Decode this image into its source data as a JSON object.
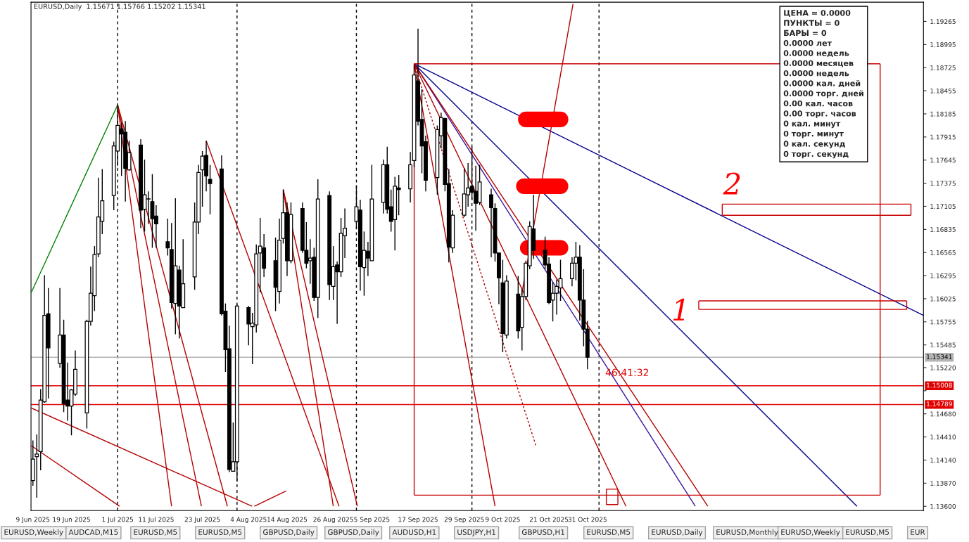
{
  "chart_data": {
    "type": "candlestick",
    "title": "EURUSD,Daily  1.15671 1.15766 1.15202 1.15341",
    "x": [
      "2025-06-09",
      "2025-06-10",
      "2025-06-11",
      "2025-06-12",
      "2025-06-13",
      "2025-06-16",
      "2025-06-17",
      "2025-06-18",
      "2025-06-19",
      "2025-06-20",
      "2025-06-23",
      "2025-06-24",
      "2025-06-25",
      "2025-06-26",
      "2025-06-27",
      "2025-06-30",
      "2025-07-01",
      "2025-07-02",
      "2025-07-03",
      "2025-07-04",
      "2025-07-07",
      "2025-07-08",
      "2025-07-09",
      "2025-07-10",
      "2025-07-11",
      "2025-07-14",
      "2025-07-15",
      "2025-07-16",
      "2025-07-17",
      "2025-07-18",
      "2025-07-21",
      "2025-07-22",
      "2025-07-23",
      "2025-07-24",
      "2025-07-25",
      "2025-07-28",
      "2025-07-29",
      "2025-07-30",
      "2025-07-31",
      "2025-08-01",
      "2025-08-04",
      "2025-08-05",
      "2025-08-06",
      "2025-08-07",
      "2025-08-08",
      "2025-08-11",
      "2025-08-12",
      "2025-08-13",
      "2025-08-14",
      "2025-08-15",
      "2025-08-18",
      "2025-08-19",
      "2025-08-20",
      "2025-08-21",
      "2025-08-22",
      "2025-08-25",
      "2025-08-26",
      "2025-08-27",
      "2025-08-28",
      "2025-08-29",
      "2025-09-01",
      "2025-09-02",
      "2025-09-03",
      "2025-09-04",
      "2025-09-05",
      "2025-09-08",
      "2025-09-09",
      "2025-09-10",
      "2025-09-11",
      "2025-09-12",
      "2025-09-15",
      "2025-09-16",
      "2025-09-17",
      "2025-09-18",
      "2025-09-19",
      "2025-09-22",
      "2025-09-23",
      "2025-09-24",
      "2025-09-25",
      "2025-09-26",
      "2025-09-29",
      "2025-09-30",
      "2025-10-01",
      "2025-10-02",
      "2025-10-03",
      "2025-10-06",
      "2025-10-07",
      "2025-10-08",
      "2025-10-09",
      "2025-10-10",
      "2025-10-13",
      "2025-10-14",
      "2025-10-15",
      "2025-10-16",
      "2025-10-17",
      "2025-10-20",
      "2025-10-21",
      "2025-10-22",
      "2025-10-23",
      "2025-10-24",
      "2025-10-27",
      "2025-10-28",
      "2025-10-29",
      "2025-10-30",
      "2025-10-31"
    ],
    "ohlc": [
      [
        1.139,
        1.1437,
        1.1384,
        1.1415
      ],
      [
        1.1418,
        1.1444,
        1.137,
        1.1421
      ],
      [
        1.1424,
        1.1497,
        1.1402,
        1.1484
      ],
      [
        1.1482,
        1.163,
        1.1481,
        1.1583
      ],
      [
        1.1585,
        1.1615,
        1.1486,
        1.1545
      ],
      [
        1.1527,
        1.1615,
        1.1522,
        1.156
      ],
      [
        1.156,
        1.1578,
        1.147,
        1.148
      ],
      [
        1.1484,
        1.1528,
        1.146,
        1.1477
      ],
      [
        1.1477,
        1.1497,
        1.1443,
        1.1496
      ],
      [
        1.1491,
        1.1542,
        1.1489,
        1.152
      ],
      [
        1.1469,
        1.1578,
        1.1451,
        1.1576
      ],
      [
        1.1576,
        1.164,
        1.1571,
        1.1609
      ],
      [
        1.1606,
        1.1664,
        1.1588,
        1.1654
      ],
      [
        1.1655,
        1.1744,
        1.1651,
        1.1698
      ],
      [
        1.1693,
        1.1754,
        1.1678,
        1.1717
      ],
      [
        1.1723,
        1.1786,
        1.1706,
        1.1781
      ],
      [
        1.1775,
        1.1829,
        1.1758,
        1.1805
      ],
      [
        1.1801,
        1.1808,
        1.1746,
        1.1795
      ],
      [
        1.1797,
        1.181,
        1.1716,
        1.1755
      ],
      [
        1.1753,
        1.1787,
        1.1752,
        1.1773
      ],
      [
        1.1782,
        1.1789,
        1.1685,
        1.1706
      ],
      [
        1.1707,
        1.1765,
        1.1681,
        1.1724
      ],
      [
        1.1719,
        1.1728,
        1.169,
        1.1719
      ],
      [
        1.1716,
        1.1748,
        1.1662,
        1.1696
      ],
      [
        1.1699,
        1.1712,
        1.1662,
        1.169
      ],
      [
        1.1669,
        1.1696,
        1.1653,
        1.1662
      ],
      [
        1.166,
        1.1691,
        1.1591,
        1.1598
      ],
      [
        1.1597,
        1.172,
        1.1561,
        1.1641
      ],
      [
        1.1636,
        1.1641,
        1.1556,
        1.1594
      ],
      [
        1.1592,
        1.1672,
        1.1592,
        1.162
      ],
      [
        1.1628,
        1.1715,
        1.1613,
        1.1692
      ],
      [
        1.1692,
        1.1759,
        1.1678,
        1.175
      ],
      [
        1.1753,
        1.1775,
        1.171,
        1.1769
      ],
      [
        1.177,
        1.1787,
        1.1728,
        1.1746
      ],
      [
        1.1742,
        1.1759,
        1.1701,
        1.1737
      ],
      [
        1.1754,
        1.177,
        1.1583,
        1.1585
      ],
      [
        1.1588,
        1.1597,
        1.1517,
        1.1543
      ],
      [
        1.1544,
        1.1571,
        1.14,
        1.1403
      ],
      [
        1.1401,
        1.1458,
        1.1401,
        1.1412
      ],
      [
        1.1412,
        1.1596,
        1.1389,
        1.1594
      ],
      [
        1.1592,
        1.1594,
        1.1548,
        1.1573
      ],
      [
        1.157,
        1.1586,
        1.1526,
        1.1574
      ],
      [
        1.1572,
        1.1666,
        1.1563,
        1.1655
      ],
      [
        1.1656,
        1.1697,
        1.161,
        1.1664
      ],
      [
        1.1662,
        1.1678,
        1.1628,
        1.1638
      ],
      [
        1.1647,
        1.1674,
        1.1588,
        1.1616
      ],
      [
        1.1611,
        1.1696,
        1.1597,
        1.1671
      ],
      [
        1.1673,
        1.173,
        1.1667,
        1.1703
      ],
      [
        1.1703,
        1.1715,
        1.1629,
        1.1647
      ],
      [
        1.1647,
        1.1715,
        1.1644,
        1.1701
      ],
      [
        1.1708,
        1.1715,
        1.1656,
        1.1659
      ],
      [
        1.1659,
        1.1692,
        1.1638,
        1.1644
      ],
      [
        1.1647,
        1.1672,
        1.162,
        1.165
      ],
      [
        1.1651,
        1.1662,
        1.16,
        1.1604
      ],
      [
        1.1604,
        1.1742,
        1.158,
        1.1719
      ],
      [
        1.1723,
        1.1728,
        1.1601,
        1.1619
      ],
      [
        1.1617,
        1.1664,
        1.1601,
        1.164
      ],
      [
        1.1642,
        1.1646,
        1.1573,
        1.1634
      ],
      [
        1.1634,
        1.1697,
        1.1628,
        1.1679
      ],
      [
        1.1676,
        1.1708,
        1.165,
        1.1685
      ],
      [
        1.1693,
        1.1735,
        1.1684,
        1.171
      ],
      [
        1.1706,
        1.1718,
        1.1612,
        1.164
      ],
      [
        1.1639,
        1.1681,
        1.1606,
        1.1659
      ],
      [
        1.1658,
        1.1669,
        1.1629,
        1.165
      ],
      [
        1.1647,
        1.1759,
        1.1647,
        1.1719
      ],
      [
        1.1715,
        1.1765,
        1.1702,
        1.1759
      ],
      [
        1.1759,
        1.178,
        1.1702,
        1.1707
      ],
      [
        1.171,
        1.173,
        1.1681,
        1.1693
      ],
      [
        1.1695,
        1.1745,
        1.1659,
        1.1734
      ],
      [
        1.1732,
        1.1747,
        1.17,
        1.173
      ],
      [
        1.1731,
        1.1774,
        1.1715,
        1.1759
      ],
      [
        1.1764,
        1.1876,
        1.1756,
        1.1864
      ],
      [
        1.1857,
        1.1918,
        1.1805,
        1.181
      ],
      [
        1.1812,
        1.1847,
        1.1749,
        1.1781
      ],
      [
        1.1786,
        1.1793,
        1.1728,
        1.1741
      ],
      [
        1.1744,
        1.1805,
        1.1724,
        1.18
      ],
      [
        1.1793,
        1.182,
        1.1778,
        1.1814
      ],
      [
        1.1813,
        1.1814,
        1.1728,
        1.1736
      ],
      [
        1.1737,
        1.1754,
        1.1645,
        1.1663
      ],
      [
        1.1662,
        1.1706,
        1.1656,
        1.17
      ],
      [
        1.17,
        1.1755,
        1.1698,
        1.1725
      ],
      [
        1.1724,
        1.1761,
        1.171,
        1.1732
      ],
      [
        1.1734,
        1.178,
        1.1718,
        1.1727
      ],
      [
        1.1728,
        1.1758,
        1.1682,
        1.1714
      ],
      [
        1.1715,
        1.1759,
        1.1712,
        1.1739
      ],
      [
        1.1724,
        1.1731,
        1.1651,
        1.1709
      ],
      [
        1.1708,
        1.1714,
        1.1646,
        1.1656
      ],
      [
        1.1656,
        1.1656,
        1.1596,
        1.1627
      ],
      [
        1.1621,
        1.1648,
        1.154,
        1.1562
      ],
      [
        1.156,
        1.163,
        1.1556,
        1.1623
      ],
      [
        1.1608,
        1.1629,
        1.1556,
        1.1565
      ],
      [
        1.1569,
        1.1614,
        1.1542,
        1.1605
      ],
      [
        1.1605,
        1.1647,
        1.1601,
        1.1644
      ],
      [
        1.1641,
        1.1693,
        1.1637,
        1.1687
      ],
      [
        1.1684,
        1.1724,
        1.1649,
        1.1659
      ],
      [
        1.1659,
        1.1675,
        1.1637,
        1.1642
      ],
      [
        1.1643,
        1.1651,
        1.1596,
        1.1598
      ],
      [
        1.1601,
        1.1622,
        1.1576,
        1.1609
      ],
      [
        1.1609,
        1.1625,
        1.1584,
        1.1617
      ],
      [
        1.1615,
        1.1648,
        1.16,
        1.1626
      ],
      [
        1.1626,
        1.1651,
        1.1617,
        1.1644
      ],
      [
        1.1644,
        1.1669,
        1.1624,
        1.1651
      ],
      [
        1.1651,
        1.1665,
        1.1577,
        1.1601
      ],
      [
        1.1601,
        1.1637,
        1.1547,
        1.1567
      ],
      [
        1.15671,
        1.15766,
        1.15202,
        1.15341
      ]
    ],
    "series": [
      {
        "type": "line",
        "color": "#008000",
        "x": [
          "2025-06-08T12:00",
          "2025-07-01"
        ],
        "values": [
          1.1609,
          1.1829
        ]
      },
      {
        "type": "line",
        "color": "#b40000",
        "x": [
          "2025-07-01",
          "2025-07-15"
        ],
        "values": [
          1.1829,
          1.136
        ]
      },
      {
        "type": "line",
        "color": "#b40000",
        "x": [
          "2025-07-01",
          "2025-07-22T18:00"
        ],
        "values": [
          1.1829,
          1.136
        ]
      },
      {
        "type": "line",
        "color": "#b40000",
        "x": [
          "2025-07-01",
          "2025-07-29T12:00"
        ],
        "values": [
          1.1829,
          1.136
        ]
      },
      {
        "type": "line",
        "color": "#b40000",
        "x": [
          "2025-07-24",
          "2025-08-27T12:00"
        ],
        "values": [
          1.1787,
          1.136
        ]
      },
      {
        "type": "line",
        "color": "#b40000",
        "x": [
          "2025-08-13",
          "2025-08-26"
        ],
        "values": [
          1.173,
          1.136
        ]
      },
      {
        "type": "line",
        "color": "#b40000",
        "x": [
          "2025-08-13",
          "2025-09-01T06:00"
        ],
        "values": [
          1.173,
          1.136
        ]
      },
      {
        "type": "line",
        "color": "#b40000",
        "x": [
          "2025-06-08T12:00",
          "2025-08-04T21:36"
        ],
        "values": [
          1.1475,
          1.136
        ]
      },
      {
        "type": "line",
        "color": "#b40000",
        "x": [
          "2025-06-08T12:00",
          "2025-07-01T12:00"
        ],
        "values": [
          1.1431,
          1.136
        ]
      },
      {
        "type": "line",
        "color": "#b40000",
        "x": [
          "2025-08-05T12:00",
          "2025-08-13T18:00"
        ],
        "values": [
          1.136,
          1.1378
        ]
      },
      {
        "type": "line",
        "color": "#00008b",
        "x": [
          "2025-09-16",
          "2026-01-26T06:00"
        ],
        "values": [
          1.1877,
          1.1583
        ]
      },
      {
        "type": "line",
        "color": "#00008b",
        "x": [
          "2025-09-16",
          "2026-01-09"
        ],
        "values": [
          1.1877,
          1.136
        ]
      },
      {
        "type": "line",
        "color": "#3c14a0",
        "x": [
          "2025-09-16",
          "2025-11-28"
        ],
        "values": [
          1.1877,
          1.136
        ]
      },
      {
        "type": "line",
        "color": "#b40000",
        "x": [
          "2025-09-16",
          "2025-12-01T06:00"
        ],
        "values": [
          1.1877,
          1.136
        ]
      },
      {
        "type": "line",
        "color": "#b40000",
        "x": [
          "2025-09-16",
          "2025-10-07"
        ],
        "values": [
          1.1877,
          1.136
        ]
      },
      {
        "type": "line",
        "color": "#b40000",
        "x": [
          "2025-09-16",
          "2025-11-10"
        ],
        "values": [
          1.1877,
          1.136
        ]
      },
      {
        "type": "line",
        "color": "#b40000",
        "line_style": "dotted",
        "x": [
          "2025-09-16",
          "2025-10-17T14:24"
        ],
        "values": [
          1.1877,
          1.1431
        ]
      },
      {
        "type": "line",
        "color": "#b40000",
        "x": [
          "2025-10-13T21:36",
          "2025-10-27T06:00"
        ],
        "values": [
          1.1607,
          1.1947
        ]
      },
      {
        "type": "line",
        "color": "#c80000",
        "x": [
          "2025-09-16",
          "2026-01-15"
        ],
        "values": [
          1.1877,
          1.1877
        ]
      },
      {
        "type": "line",
        "color": "#c80000",
        "x": [
          "2025-09-16",
          "2026-01-15"
        ],
        "values": [
          1.1373,
          1.1373
        ]
      },
      {
        "type": "line",
        "color": "#c80000",
        "x": [
          "2025-09-16",
          "2025-09-16"
        ],
        "values": [
          1.1877,
          1.1373
        ]
      },
      {
        "type": "line",
        "color": "#c80000",
        "x": [
          "2026-01-15",
          "2026-01-15"
        ],
        "values": [
          1.1877,
          1.1373
        ]
      },
      {
        "type": "line",
        "color": "#c80000",
        "x": [
          "2025-11-04T21:36",
          "2025-11-07T21:36"
        ],
        "values": [
          1.138,
          1.138
        ]
      },
      {
        "type": "line",
        "color": "#c80000",
        "x": [
          "2025-11-04T21:36",
          "2025-11-07T21:36"
        ],
        "values": [
          1.1362,
          1.1362
        ]
      },
      {
        "type": "line",
        "color": "#c80000",
        "x": [
          "2025-11-04T21:36",
          "2025-11-04T21:36"
        ],
        "values": [
          1.138,
          1.1362
        ]
      },
      {
        "type": "line",
        "color": "#c80000",
        "x": [
          "2025-11-07T21:36",
          "2025-11-07T21:36"
        ],
        "values": [
          1.138,
          1.1362
        ]
      },
      {
        "type": "line",
        "color": "#c80000",
        "x": [
          "2025-12-05",
          "2026-01-23"
        ],
        "values": [
          1.1713,
          1.1713
        ]
      },
      {
        "type": "line",
        "color": "#c80000",
        "x": [
          "2025-12-05",
          "2026-01-23"
        ],
        "values": [
          1.17,
          1.17
        ]
      },
      {
        "type": "line",
        "color": "#c80000",
        "x": [
          "2025-12-05",
          "2025-12-05"
        ],
        "values": [
          1.1713,
          1.17
        ]
      },
      {
        "type": "line",
        "color": "#c80000",
        "x": [
          "2026-01-23",
          "2026-01-23"
        ],
        "values": [
          1.1713,
          1.17
        ]
      },
      {
        "type": "line",
        "color": "#c80000",
        "x": [
          "2025-11-28T21:36",
          "2026-01-21T21:36"
        ],
        "values": [
          1.16,
          1.16
        ]
      },
      {
        "type": "line",
        "color": "#c80000",
        "x": [
          "2025-11-28T21:36",
          "2026-01-21T21:36"
        ],
        "values": [
          1.159,
          1.159
        ]
      },
      {
        "type": "line",
        "color": "#c80000",
        "x": [
          "2025-11-28T21:36",
          "2025-11-28T21:36"
        ],
        "values": [
          1.16,
          1.159
        ]
      },
      {
        "type": "line",
        "color": "#c80000",
        "x": [
          "2026-01-21T21:36",
          "2026-01-21T21:36"
        ],
        "values": [
          1.16,
          1.159
        ]
      },
      {
        "type": "line",
        "color": "#ff0000",
        "x": [
          "2025-10-15",
          "2025-10-24"
        ],
        "values": [
          1.1812,
          1.1812
        ]
      },
      {
        "type": "line",
        "color": "#ff0000",
        "x": [
          "2025-10-14T12:00",
          "2025-10-24"
        ],
        "values": [
          1.1734,
          1.1734
        ]
      },
      {
        "type": "line",
        "color": "#ff0000",
        "x": [
          "2025-10-15T12:00",
          "2025-10-24"
        ],
        "values": [
          1.1662,
          1.1662
        ]
      }
    ],
    "ref_lines": [
      {
        "axis": "y",
        "value": 1.15341,
        "label": "1.15341",
        "color": "#b4b4b4"
      },
      {
        "axis": "y",
        "value": 1.15008,
        "label": "1.15008",
        "color": "#e00000"
      },
      {
        "axis": "y",
        "value": 1.14789,
        "label": "1.14789",
        "color": "#e00000"
      },
      {
        "axis": "x",
        "value": "2025-07-01",
        "color": "#000000",
        "line_style": "dashed"
      },
      {
        "axis": "x",
        "value": "2025-08-01",
        "color": "#000000",
        "line_style": "dashed"
      },
      {
        "axis": "x",
        "value": "2025-09-01",
        "color": "#000000",
        "line_style": "dashed"
      },
      {
        "axis": "x",
        "value": "2025-10-01",
        "color": "#000000",
        "line_style": "dashed"
      },
      {
        "axis": "x",
        "value": "2025-11-03",
        "color": "#000000",
        "line_style": "dashed"
      }
    ],
    "annotations": [
      "ЦЕНА = 0.0000\nПУНКТЫ = 0\nБАРЫ = 0\n0.0000 лет\n0.0000 недель\n0.0000 месяцев\n0.0000 недель\n0.0000 кал. дней\n0.0000 торг. дней\n0.00 кал. часов\n0.00 торг. часов\n0 кал. минут\n0 торг. минут\n0 кал. секунд\n0 торг. секунд",
      "1",
      "2",
      "46:41:32",
      "EURUSD,Weekly",
      "AUDCAD,M15",
      "EURUSD,M5",
      "EURUSD,M5",
      "GBPUSD,Daily",
      "GBPUSD,Daily",
      "AUDUSD,H1",
      "USDJPY,H1",
      "GBPUSD,H1",
      "EURUSD,M5",
      "EURUSD,Daily",
      "EURUSD,Monthly",
      "EURUSD,Weekly",
      "EURUSD,M5",
      "EUR"
    ],
    "xlim": [
      "2025-06-08T12:00",
      "2026-01-26T06:00"
    ],
    "xticks": [
      {
        "value": "2025-06-09",
        "label": "9 Jun 2025"
      },
      {
        "value": "2025-06-19",
        "label": "19 Jun 2025"
      },
      {
        "value": "2025-07-01",
        "label": "1 Jul 2025"
      },
      {
        "value": "2025-07-11",
        "label": "11 Jul 2025"
      },
      {
        "value": "2025-07-23",
        "label": "23 Jul 2025"
      },
      {
        "value": "2025-08-04",
        "label": "4 Aug 2025"
      },
      {
        "value": "2025-08-14",
        "label": "14 Aug 2025"
      },
      {
        "value": "2025-08-26",
        "label": "26 Aug 2025"
      },
      {
        "value": "2025-09-05",
        "label": "5 Sep 2025"
      },
      {
        "value": "2025-09-17",
        "label": "17 Sep 2025"
      },
      {
        "value": "2025-09-29",
        "label": "29 Sep 2025"
      },
      {
        "value": "2025-10-09",
        "label": "9 Oct 2025"
      },
      {
        "value": "2025-10-21",
        "label": "21 Oct 2025"
      },
      {
        "value": "2025-10-31",
        "label": "31 Oct 2025"
      }
    ],
    "ylim": [
      1.1355,
      1.1949
    ],
    "yticks": [
      {
        "value": 1.19265,
        "label": "1.19265"
      },
      {
        "value": 1.18995,
        "label": "1.18995"
      },
      {
        "value": 1.18725,
        "label": "1.18725"
      },
      {
        "value": 1.18455,
        "label": "1.18455"
      },
      {
        "value": 1.18185,
        "label": "1.18185"
      },
      {
        "value": 1.17915,
        "label": "1.17915"
      },
      {
        "value": 1.17645,
        "label": "1.17645"
      },
      {
        "value": 1.17375,
        "label": "1.17375"
      },
      {
        "value": 1.17105,
        "label": "1.17105"
      },
      {
        "value": 1.16835,
        "label": "1.16835"
      },
      {
        "value": 1.16565,
        "label": "1.16565"
      },
      {
        "value": 1.16295,
        "label": "1.16295"
      },
      {
        "value": 1.16025,
        "label": "1.16025"
      },
      {
        "value": 1.15755,
        "label": "1.15755"
      },
      {
        "value": 1.15485,
        "label": "1.15485"
      },
      {
        "value": 1.1522,
        "label": "1.15220"
      },
      {
        "value": 1.1495,
        "label": null
      },
      {
        "value": 1.1468,
        "label": "1.14680"
      },
      {
        "value": 1.1441,
        "label": "1.14410"
      },
      {
        "value": 1.1414,
        "label": "1.14140"
      },
      {
        "value": 1.1387,
        "label": "1.13870"
      },
      {
        "value": 1.136,
        "label": "1.13600"
      }
    ]
  }
}
